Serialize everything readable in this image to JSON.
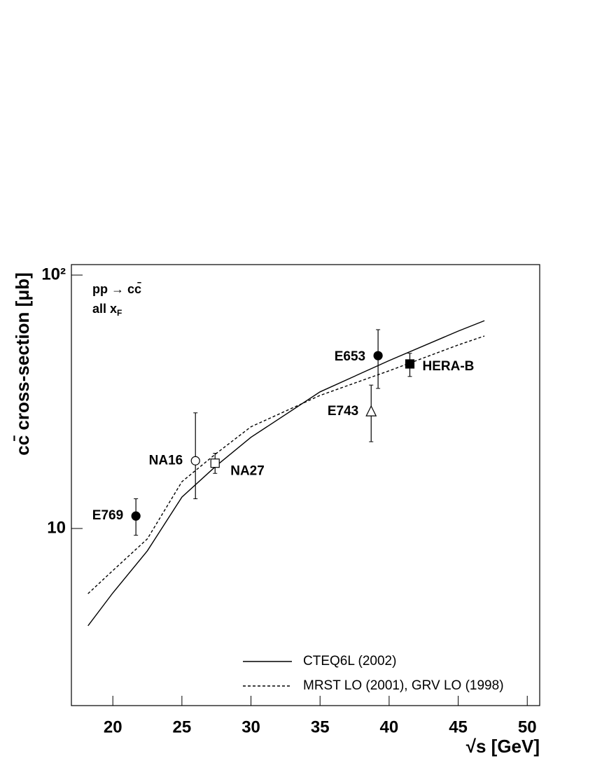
{
  "chart_data": {
    "type": "scatter",
    "x_label": "√s [GeV]",
    "y_label": "cc̄ cross-section [μb]",
    "annotations": [
      {
        "text": "pp → cc̄"
      },
      {
        "text": "all x",
        "sub": "F"
      }
    ],
    "xlim": [
      17,
      50.9
    ],
    "ylim": [
      2,
      110
    ],
    "ylog": true,
    "xticks": [
      20,
      25,
      30,
      35,
      40,
      45,
      50
    ],
    "yticks": [
      10,
      {
        "value": 100,
        "label": "10²"
      }
    ],
    "points": [
      {
        "name": "E769",
        "x": 21.67,
        "y": 11.2,
        "y_low": 9.4,
        "y_high": 13.1,
        "marker": "filled-circle"
      },
      {
        "name": "NA16",
        "x": 25.98,
        "y": 18.5,
        "y_low": 13.1,
        "y_high": 28.6,
        "marker": "open-circle"
      },
      {
        "name": "NA27",
        "x": 27.4,
        "y": 18.1,
        "y_low": 16.5,
        "y_high": 19.8,
        "marker": "open-square"
      },
      {
        "name": "E743",
        "x": 38.7,
        "y": 28.9,
        "y_low": 22.0,
        "y_high": 36.8,
        "marker": "open-triangle"
      },
      {
        "name": "E653",
        "x": 39.2,
        "y": 48.1,
        "y_low": 35.7,
        "y_high": 60.9,
        "marker": "filled-circle"
      },
      {
        "name": "HERA-B",
        "x": 41.5,
        "y": 44.6,
        "y_low": 39.8,
        "y_high": 49.1,
        "marker": "filled-square"
      }
    ],
    "series": [
      {
        "name": "CTEQ6L (2002)",
        "color": "#000000",
        "dash": "none",
        "x": [
          18.2,
          20,
          22.5,
          25,
          27.5,
          30,
          35,
          40,
          45,
          46.9
        ],
        "values": [
          4.13,
          5.57,
          8.16,
          13.3,
          17.7,
          22.9,
          34.6,
          46.0,
          60.1,
          66.1
        ]
      },
      {
        "name": "MRST LO (2001), GRV LO (1998)",
        "color": "#000000",
        "dash": "4 3",
        "x": [
          18.2,
          20,
          22.5,
          25,
          27.5,
          30,
          35,
          40,
          45,
          46.9
        ],
        "values": [
          5.53,
          6.82,
          9.1,
          15.3,
          19.8,
          25.2,
          33.5,
          41.9,
          53.0,
          57.5
        ]
      }
    ]
  }
}
